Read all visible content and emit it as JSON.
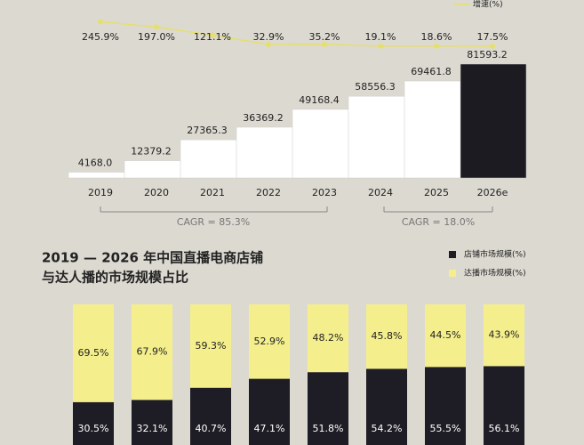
{
  "chart_data": [
    {
      "type": "bar",
      "categories": [
        "2019",
        "2020",
        "2021",
        "2022",
        "2023",
        "2024",
        "2025",
        "2026e"
      ],
      "values": [
        4168.0,
        12379.2,
        27365.3,
        36369.2,
        49168.4,
        58556.3,
        69461.8,
        81593.2
      ],
      "value_labels": [
        "4168.0",
        "12379.2",
        "27365.3",
        "36369.2",
        "49168.4",
        "58556.3",
        "69461.8",
        "81593.2"
      ],
      "colors": [
        "#ffffff",
        "#ffffff",
        "#ffffff",
        "#ffffff",
        "#ffffff",
        "#ffffff",
        "#ffffff",
        "#1d1b22"
      ],
      "series": [
        {
          "name": "增速(%)",
          "type": "line",
          "color": "#e6df6e",
          "values": [
            245.9,
            197.0,
            121.1,
            32.9,
            35.2,
            19.1,
            18.6,
            17.5
          ],
          "value_labels": [
            "245.9%",
            "197.0%",
            "121.1%",
            "32.9%",
            "35.2%",
            "19.1%",
            "18.6%",
            "17.5%"
          ]
        }
      ],
      "annotations": [
        "CAGR = 85.3%",
        "CAGR = 18.0%"
      ]
    },
    {
      "type": "stacked_bar",
      "title": [
        "2019 — 2026 年中国直播电商店铺",
        "与达人播的市场规模占比"
      ],
      "series": [
        {
          "name": "店铺市场规模(%)",
          "color": "#1e1c24",
          "values": [
            30.5,
            32.1,
            40.7,
            47.1,
            51.8,
            54.2,
            55.5,
            56.1
          ],
          "value_labels": [
            "30.5%",
            "32.1%",
            "40.7%",
            "47.1%",
            "51.8%",
            "54.2%",
            "55.5%",
            "56.1%"
          ]
        },
        {
          "name": "达播市场规模(%)",
          "color": "#f4ef8c",
          "values": [
            69.5,
            67.9,
            59.3,
            52.9,
            48.2,
            45.8,
            44.5,
            43.9
          ],
          "value_labels": [
            "69.5%",
            "67.9%",
            "59.3%",
            "52.9%",
            "48.2%",
            "45.8%",
            "44.5%",
            "43.9%"
          ]
        }
      ]
    }
  ]
}
